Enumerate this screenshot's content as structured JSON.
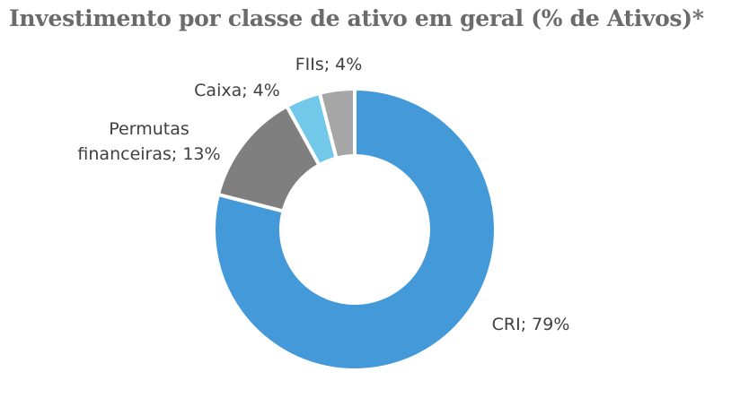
{
  "chart_data": {
    "type": "pie",
    "title": "Investimento por classe de ativo em geral (% de Ativos)*",
    "categories": [
      "CRI",
      "Permutas financeiras",
      "Caixa",
      "FIIs"
    ],
    "values": [
      79,
      13,
      4,
      4
    ],
    "unit": "%",
    "labels": [
      {
        "lines": [
          "CRI; 79%"
        ]
      },
      {
        "lines": [
          "Permutas",
          "financeiras; 13%"
        ]
      },
      {
        "lines": [
          "Caixa; 4%"
        ]
      },
      {
        "lines": [
          "FIIs; 4%"
        ]
      }
    ],
    "colors": [
      "#4499d9",
      "#7f7f7f",
      "#72c8e8",
      "#a6a6a6"
    ],
    "style": "donut",
    "legend": "none"
  }
}
